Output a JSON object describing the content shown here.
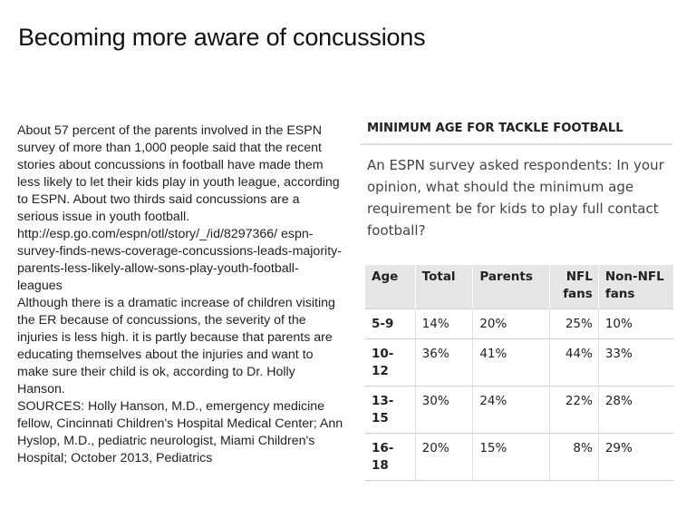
{
  "slide": {
    "title": "Becoming more aware of concussions"
  },
  "body": {
    "paragraphs": [
      "About 57 percent of the parents involved in the ESPN survey of more than 1,000 people said that the recent stories about concussions in football have made them less likely to let their kids play in youth league, according to ESPN. About two thirds said concussions are a serious issue in youth football.",
      "http://esp.go.com/espn/otl/story/_/id/8297366/ espn-survey-finds-news-coverage-concussions-leads-majority-parents-less-likely-allow-sons-play-youth-football-leagues",
      "Although there is a dramatic increase of children visiting the ER because of concussions, the severity of the injuries is less high. it is partly because that parents are educating themselves about the injuries and want to make sure their child is ok, according to Dr. Holly Hanson.",
      "SOURCES: Holly Hanson, M.D., emergency medicine fellow, Cincinnati Children's Hospital Medical Center; Ann Hyslop, M.D., pediatric neurologist, Miami Children's Hospital; October 2013, Pediatrics"
    ]
  },
  "card": {
    "heading": "MINIMUM AGE FOR TACKLE FOOTBALL",
    "question": "An ESPN survey asked respondents: In your opinion, what should the minimum age requirement be for kids to play full contact football?",
    "columns": [
      "Age",
      "Total",
      "Parents",
      "NFL fans",
      "Non-NFL fans"
    ],
    "rows": [
      {
        "age": "5-9",
        "total": "14%",
        "parents": "20%",
        "nfl": "25%",
        "non_nfl": "10%"
      },
      {
        "age": "10-12",
        "total": "36%",
        "parents": "41%",
        "nfl": "44%",
        "non_nfl": "33%"
      },
      {
        "age": "13-15",
        "total": "30%",
        "parents": "24%",
        "nfl": "22%",
        "non_nfl": "28%"
      },
      {
        "age": "16-18",
        "total": "20%",
        "parents": "15%",
        "nfl": "8%",
        "non_nfl": "29%"
      }
    ]
  }
}
